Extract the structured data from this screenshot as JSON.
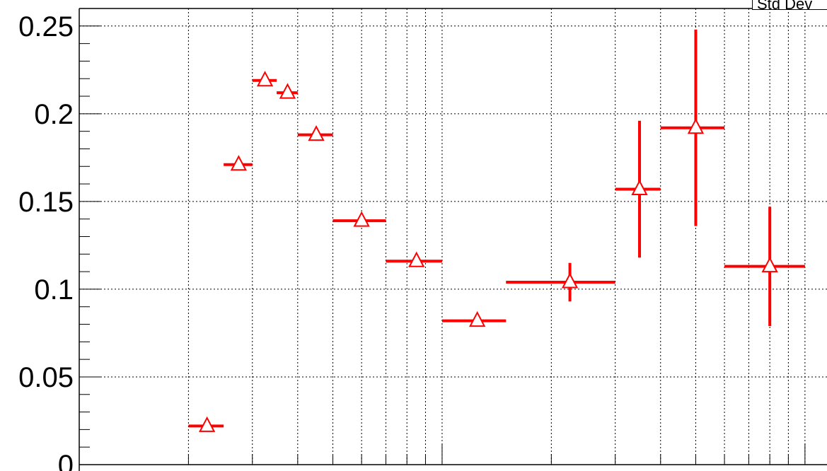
{
  "chart_data": {
    "type": "scatter",
    "title": "",
    "xlabel": "",
    "ylabel": "",
    "x_scale": "log",
    "grid": true,
    "ylim": [
      0,
      0.26
    ],
    "y_ticks": [
      "0",
      "0.05",
      "0.1",
      "0.15",
      "0.2",
      "0.25"
    ],
    "series": [
      {
        "marker": "open-triangle",
        "color": "#ff0000",
        "points": [
          {
            "x": 2.25,
            "y": 0.022,
            "xerr": [
              2.0,
              2.5
            ],
            "yerr": 0.002
          },
          {
            "x": 2.75,
            "y": 0.171,
            "xerr": [
              2.5,
              3.0
            ],
            "yerr": 0.003
          },
          {
            "x": 3.25,
            "y": 0.219,
            "xerr": [
              3.0,
              3.5
            ],
            "yerr": 0.003
          },
          {
            "x": 3.75,
            "y": 0.212,
            "xerr": [
              3.5,
              4.0
            ],
            "yerr": 0.003
          },
          {
            "x": 4.5,
            "y": 0.188,
            "xerr": [
              4.0,
              5.0
            ],
            "yerr": 0.002
          },
          {
            "x": 6.0,
            "y": 0.139,
            "xerr": [
              5.0,
              7.0
            ],
            "yerr": 0.002
          },
          {
            "x": 8.5,
            "y": 0.116,
            "xerr": [
              7.0,
              10.0
            ],
            "yerr": 0.002
          },
          {
            "x": 12.5,
            "y": 0.082,
            "xerr": [
              10.0,
              15.0
            ],
            "yerr": 0.002
          },
          {
            "x": 22.5,
            "y": 0.104,
            "xerr": [
              15.0,
              30.0
            ],
            "yerr": 0.011
          },
          {
            "x": 35.0,
            "y": 0.157,
            "xerr": [
              30.0,
              40.0
            ],
            "yerr": 0.039
          },
          {
            "x": 50.0,
            "y": 0.192,
            "xerr": [
              40.0,
              60.0
            ],
            "yerr": 0.056
          },
          {
            "x": 80.0,
            "y": 0.113,
            "xerr": [
              60.0,
              100.0
            ],
            "yerr": 0.034
          }
        ]
      }
    ],
    "stats_box": {
      "label": "Std Dev"
    }
  }
}
